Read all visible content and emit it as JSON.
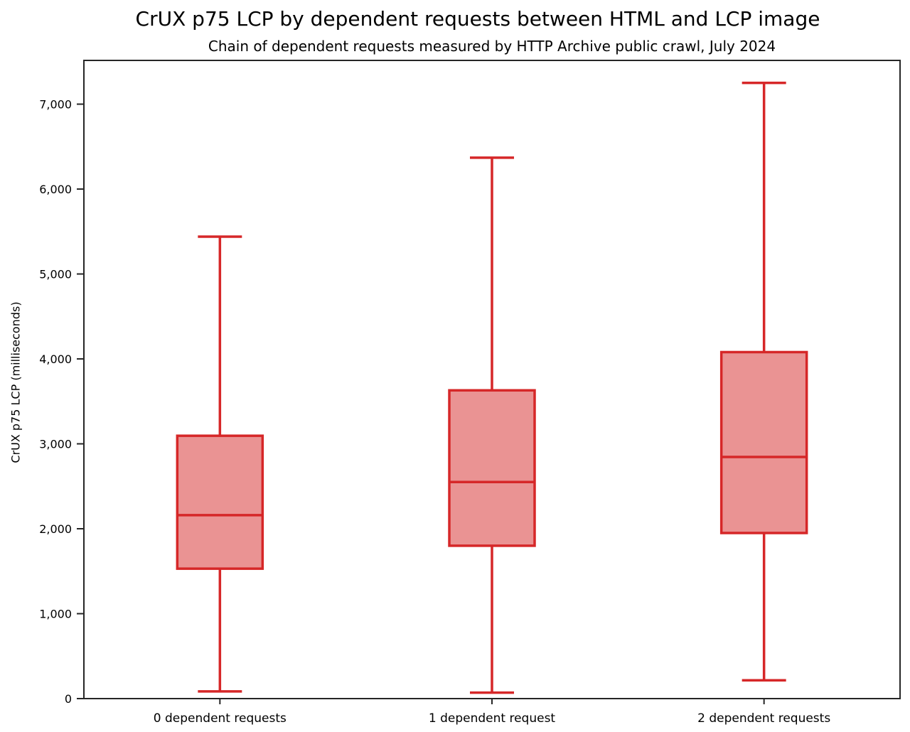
{
  "chart_data": {
    "type": "boxplot",
    "title": "CrUX p75 LCP by dependent requests between HTML and LCP image",
    "subtitle": "Chain of dependent requests measured by HTTP Archive public crawl, July 2024",
    "xlabel": "",
    "ylabel": "CrUX p75 LCP (milliseconds)",
    "categories": [
      "0 dependent requests",
      "1 dependent request",
      "2 dependent requests"
    ],
    "series": [
      {
        "name": "0 dependent requests",
        "whisker_low": 85,
        "q1": 1530,
        "median": 2160,
        "q3": 3095,
        "whisker_high": 5440
      },
      {
        "name": "1 dependent request",
        "whisker_low": 70,
        "q1": 1800,
        "median": 2550,
        "q3": 3630,
        "whisker_high": 6370
      },
      {
        "name": "2 dependent requests",
        "whisker_low": 215,
        "q1": 1950,
        "median": 2845,
        "q3": 4080,
        "whisker_high": 7250
      }
    ],
    "yticks": [
      0,
      1000,
      2000,
      3000,
      4000,
      5000,
      6000,
      7000
    ],
    "ytick_labels": [
      "0",
      "1,000",
      "2,000",
      "3,000",
      "4,000",
      "5,000",
      "6,000",
      "7,000"
    ],
    "ylim": [
      0,
      7515
    ],
    "grid": false,
    "legend": false,
    "colors": {
      "box_edge": "#d62728",
      "box_fill": "rgba(214,39,40,0.5)",
      "axis": "#262626",
      "text": "#000000"
    }
  }
}
